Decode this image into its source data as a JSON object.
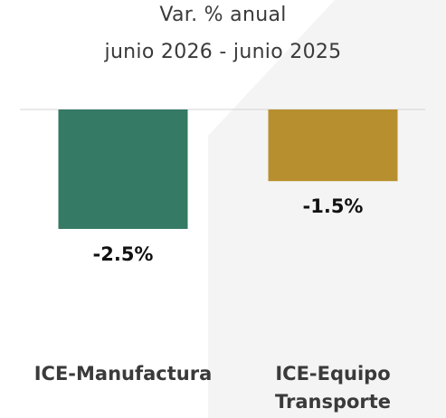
{
  "chart_data": {
    "type": "bar",
    "title": [
      "Var. % anual",
      "junio 2026 - junio 2025"
    ],
    "categories": [
      "ICE-Manufactura",
      "ICE-Equipo Transporte"
    ],
    "category_lines": [
      [
        "ICE-Manufactura"
      ],
      [
        "ICE-Equipo",
        "Transporte"
      ]
    ],
    "values": [
      -2.5,
      -1.5
    ],
    "value_labels": [
      "-2.5%",
      "-1.5%"
    ],
    "colors": [
      "#357a64",
      "#b88f2e"
    ],
    "ylim": [
      -2.5,
      0
    ],
    "grid": false,
    "legend": "none"
  }
}
